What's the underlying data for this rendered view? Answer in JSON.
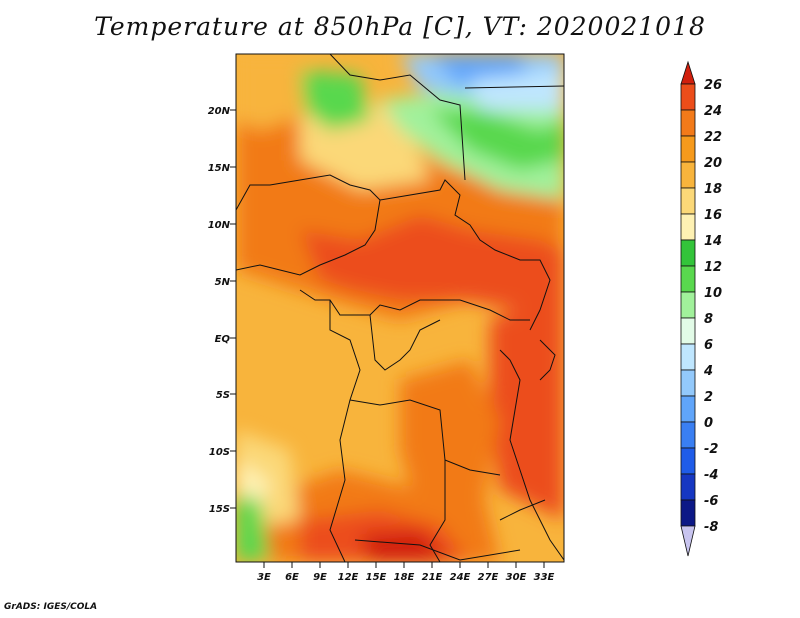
{
  "title": "Temperature at 850hPa [C], VT: 2020021018",
  "credit": "GrADS: IGES/COLA",
  "map": {
    "lon_labels": [
      "3E",
      "6E",
      "9E",
      "12E",
      "15E",
      "18E",
      "21E",
      "24E",
      "27E",
      "30E",
      "33E"
    ],
    "lat_labels": [
      "20N",
      "15N",
      "10N",
      "5N",
      "EQ",
      "5S",
      "10S",
      "15S"
    ],
    "lon_range": [
      0,
      35
    ],
    "lat_range": [
      -20,
      25
    ],
    "variable": "Temperature at 850hPa",
    "units": "C"
  },
  "colorbar": {
    "labels": [
      "26",
      "24",
      "22",
      "20",
      "18",
      "16",
      "14",
      "12",
      "10",
      "8",
      "6",
      "4",
      "2",
      "0",
      "-2",
      "-4",
      "-6",
      "-8"
    ],
    "colors": [
      "#d11f0d",
      "#ec4d1a",
      "#f27a19",
      "#f69a1c",
      "#f8b43c",
      "#fbd878",
      "#fef1b3",
      "#33c43a",
      "#59d84e",
      "#a1f19b",
      "#e2fbe7",
      "#bfe6fe",
      "#93c9fb",
      "#60a5fa",
      "#3a7ff2",
      "#1f5ce8",
      "#1637c2",
      "#0c1886",
      "#c8c4ef"
    ]
  }
}
